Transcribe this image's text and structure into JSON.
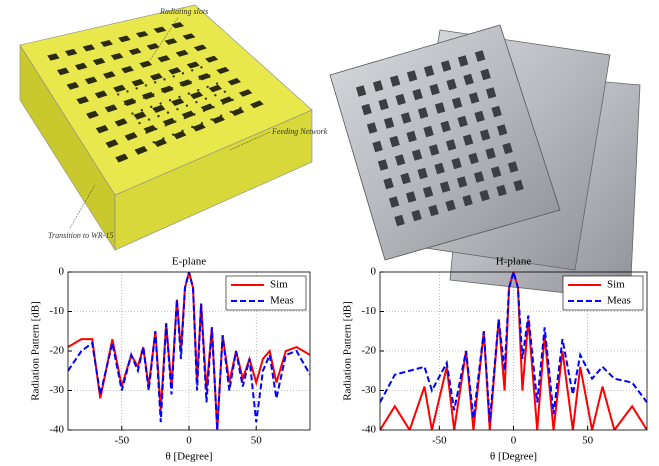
{
  "figure": {
    "annotations": [
      "Radiating slots",
      "Feeding Network",
      "Transition to WR-15"
    ]
  },
  "chart_data": [
    {
      "type": "line",
      "title": "E-plane",
      "xlabel": "θ [Degree]",
      "ylabel": "Radiation Pattern [dB]",
      "x": [
        -90,
        -80,
        -72,
        -66,
        -57,
        -50,
        -43,
        -38,
        -34,
        -30,
        -25,
        -21,
        -17,
        -13,
        -9,
        -6,
        -3,
        0,
        3,
        6,
        9,
        13,
        17,
        21,
        25,
        30,
        35,
        40,
        45,
        50,
        55,
        60,
        65,
        72,
        80,
        90
      ],
      "series": [
        {
          "name": "Sim",
          "color": "#ff0000",
          "linestyle": "solid",
          "values": [
            -19,
            -17,
            -17,
            -32,
            -17,
            -29,
            -21,
            -24,
            -19,
            -29,
            -15,
            -35,
            -13,
            -29,
            -7,
            -20,
            -4,
            0,
            -4,
            -28,
            -8,
            -30,
            -14,
            -40,
            -16,
            -28,
            -20,
            -27,
            -22,
            -28,
            -22,
            -20,
            -28,
            -20,
            -19,
            -21
          ]
        },
        {
          "name": "Meas",
          "color": "#0000ff",
          "linestyle": "dashed",
          "values": [
            -25,
            -20,
            -18,
            -31,
            -18,
            -30,
            -21,
            -25,
            -19,
            -30,
            -15,
            -38,
            -13,
            -31,
            -7,
            -22,
            -4,
            0,
            -4,
            -30,
            -8,
            -33,
            -14,
            -40,
            -16,
            -30,
            -20,
            -29,
            -22,
            -38,
            -25,
            -21,
            -32,
            -21,
            -20,
            -26
          ]
        }
      ],
      "xlim": [
        -90,
        90
      ],
      "ylim": [
        -40,
        0
      ],
      "xticks": [
        -50,
        0,
        50
      ],
      "yticks": [
        -40,
        -30,
        -20,
        -10,
        0
      ],
      "grid": true,
      "legend": "upper right"
    },
    {
      "type": "line",
      "title": "H-plane",
      "xlabel": "θ [Degree]",
      "ylabel": "Radiation Pattern [dB]",
      "x": [
        -90,
        -80,
        -70,
        -60,
        -55,
        -45,
        -40,
        -32,
        -27,
        -20,
        -16,
        -10,
        -6,
        -3,
        0,
        3,
        6,
        10,
        16,
        21,
        27,
        33,
        40,
        45,
        53,
        60,
        68,
        80,
        90
      ],
      "series": [
        {
          "name": "Sim",
          "color": "#ff0000",
          "linestyle": "solid",
          "values": [
            -40,
            -34,
            -40,
            -29,
            -40,
            -24,
            -40,
            -20,
            -40,
            -15,
            -40,
            -12,
            -30,
            -4,
            0,
            -4,
            -30,
            -12,
            -40,
            -16,
            -40,
            -20,
            -40,
            -24,
            -40,
            -29,
            -40,
            -34,
            -40
          ]
        },
        {
          "name": "Meas",
          "color": "#0000ff",
          "linestyle": "dashed",
          "values": [
            -33,
            -26,
            -25,
            -24,
            -30,
            -23,
            -35,
            -20,
            -37,
            -15,
            -38,
            -12,
            -25,
            -4,
            0,
            -4,
            -22,
            -11,
            -33,
            -14,
            -36,
            -17,
            -31,
            -21,
            -27,
            -24,
            -27,
            -28,
            -33
          ]
        }
      ],
      "xlim": [
        -90,
        90
      ],
      "ylim": [
        -40,
        0
      ],
      "xticks": [
        -50,
        0,
        50
      ],
      "yticks": [
        -40,
        -30,
        -20,
        -10,
        0
      ],
      "grid": true,
      "legend": "upper right"
    }
  ]
}
